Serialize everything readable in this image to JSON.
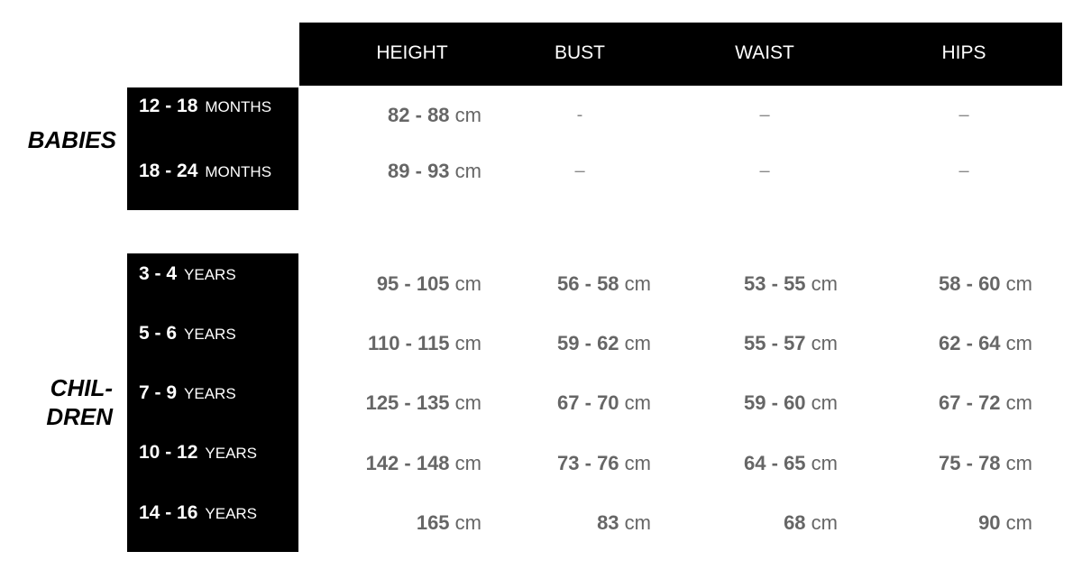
{
  "headers": [
    "HEIGHT",
    "BUST",
    "WAIST",
    "HIPS"
  ],
  "groups": [
    {
      "label": "BABIES",
      "rows": [
        {
          "size": "12 - 18",
          "unit": "MONTHS",
          "values": [
            {
              "num": "82 - 88",
              "unit": "cm"
            },
            {
              "dash": "-"
            },
            {
              "dash": "–"
            },
            {
              "dash": "–"
            }
          ]
        },
        {
          "size": "18 - 24",
          "unit": "MONTHS",
          "values": [
            {
              "num": "89 - 93",
              "unit": "cm"
            },
            {
              "dash": "–"
            },
            {
              "dash": "–"
            },
            {
              "dash": "–"
            }
          ]
        }
      ]
    },
    {
      "label_line1": "CHIL-",
      "label_line2": "DREN",
      "rows": [
        {
          "size": "3 - 4",
          "unit": "YEARS",
          "values": [
            {
              "num": "95 - 105",
              "unit": "cm"
            },
            {
              "num": "56 - 58",
              "unit": "cm"
            },
            {
              "num": "53 - 55",
              "unit": "cm"
            },
            {
              "num": "58 - 60",
              "unit": "cm"
            }
          ]
        },
        {
          "size": "5 - 6",
          "unit": "YEARS",
          "values": [
            {
              "num": "110 - 115",
              "unit": "cm"
            },
            {
              "num": "59 - 62",
              "unit": "cm"
            },
            {
              "num": "55 - 57",
              "unit": "cm"
            },
            {
              "num": "62 - 64",
              "unit": "cm"
            }
          ]
        },
        {
          "size": "7 - 9",
          "unit": "YEARS",
          "values": [
            {
              "num": "125 - 135",
              "unit": "cm"
            },
            {
              "num": "67 - 70",
              "unit": "cm"
            },
            {
              "num": "59 - 60",
              "unit": "cm"
            },
            {
              "num": "67 - 72",
              "unit": "cm"
            }
          ]
        },
        {
          "size": "10 - 12",
          "unit": "YEARS",
          "values": [
            {
              "num": "142 - 148",
              "unit": "cm"
            },
            {
              "num": "73 - 76",
              "unit": "cm"
            },
            {
              "num": "64 - 65",
              "unit": "cm"
            },
            {
              "num": "75 - 78",
              "unit": "cm"
            }
          ]
        },
        {
          "size": "14 - 16",
          "unit": "YEARS",
          "values": [
            {
              "num": "165",
              "unit": "cm"
            },
            {
              "num": "83",
              "unit": "cm"
            },
            {
              "num": "68",
              "unit": "cm"
            },
            {
              "num": "90",
              "unit": "cm"
            }
          ]
        }
      ]
    }
  ]
}
